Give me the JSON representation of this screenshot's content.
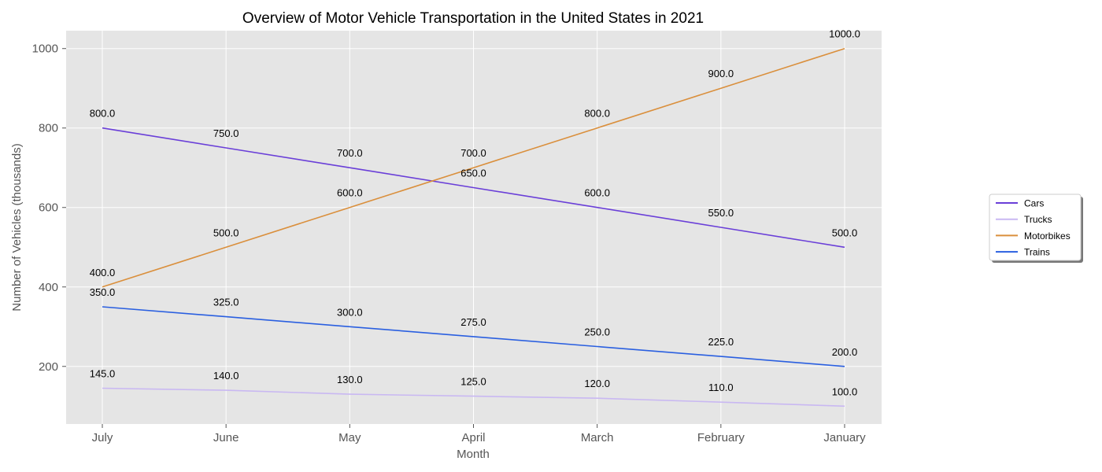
{
  "chart_data": {
    "type": "line",
    "title": "Overview of Motor Vehicle Transportation in the United States in 2021",
    "xlabel": "Month",
    "ylabel": "Number of Vehicles (thousands)",
    "categories": [
      "July",
      "June",
      "May",
      "April",
      "March",
      "February",
      "January"
    ],
    "ylim": [
      55,
      1045
    ],
    "yticks": [
      200,
      400,
      600,
      800,
      1000
    ],
    "grid": true,
    "legend": "center-right",
    "series": [
      {
        "name": "Cars",
        "color": "#6a3fd8",
        "values": [
          800,
          750,
          700,
          650,
          600,
          550,
          500
        ],
        "labels": [
          "800.0",
          "750.0",
          "700.0",
          "650.0",
          "600.0",
          "550.0",
          "500.0"
        ]
      },
      {
        "name": "Trucks",
        "color": "#c9b8f2",
        "values": [
          145,
          140,
          130,
          125,
          120,
          110,
          100
        ],
        "labels": [
          "145.0",
          "140.0",
          "130.0",
          "125.0",
          "120.0",
          "110.0",
          "100.0"
        ]
      },
      {
        "name": "Motorbikes",
        "color": "#da8f3c",
        "values": [
          400,
          500,
          600,
          700,
          800,
          900,
          1000
        ],
        "labels": [
          "400.0",
          "500.0",
          "600.0",
          "700.0",
          "800.0",
          "900.0",
          "1000.0"
        ]
      },
      {
        "name": "Trains",
        "color": "#2a5fe0",
        "values": [
          350,
          325,
          300,
          275,
          250,
          225,
          200
        ],
        "labels": [
          "350.0",
          "325.0",
          "300.0",
          "275.0",
          "250.0",
          "225.0",
          "200.0"
        ]
      }
    ]
  }
}
